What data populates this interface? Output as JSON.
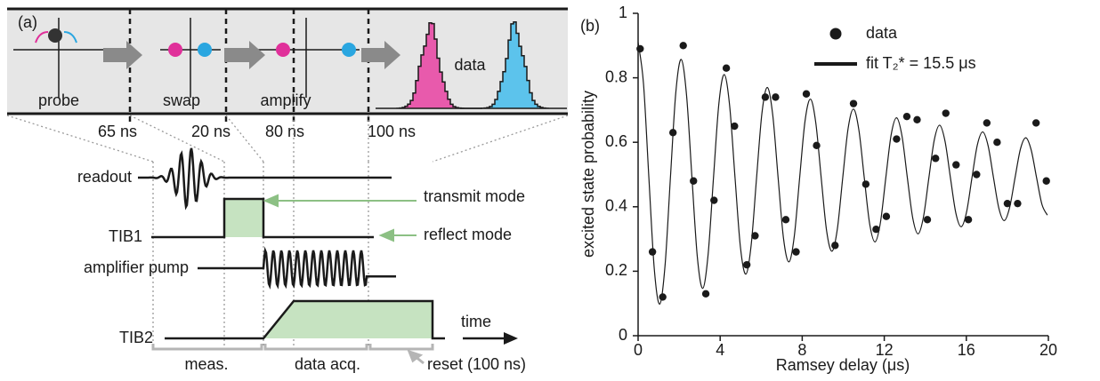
{
  "diagram": {
    "label": "(a)",
    "stages": [
      "probe",
      "swap",
      "amplify",
      "data"
    ],
    "durations": [
      "65 ns",
      "20 ns",
      "80 ns",
      "100 ns"
    ],
    "signals": [
      "readout",
      "TIB1",
      "amplifier pump",
      "TIB2"
    ],
    "modes": [
      "transmit mode",
      "reflect mode"
    ],
    "time": "time",
    "phases": [
      "meas.",
      "data acq.",
      "reset (100 ns)"
    ]
  },
  "chart_data": {
    "type": "scatter",
    "label": "(b)",
    "x_label": "Ramsey delay (μs)",
    "y_label": "excited state probability",
    "xlim": [
      0,
      20
    ],
    "xticks": [
      0,
      4,
      8,
      12,
      16,
      20
    ],
    "ylim": [
      0,
      1
    ],
    "yticks": [
      0,
      0.2,
      0.4,
      0.6,
      0.8,
      1
    ],
    "legend": "upper right",
    "series": [
      {
        "name": "data",
        "mode": "markers",
        "color": "#1a1a1a",
        "x": [
          0.1,
          0.7,
          1.2,
          1.7,
          2.2,
          2.7,
          3.3,
          3.7,
          4.3,
          4.7,
          5.3,
          5.7,
          6.2,
          6.7,
          7.2,
          7.7,
          8.2,
          8.7,
          9.6,
          10.5,
          11.1,
          11.6,
          12.1,
          12.6,
          13.1,
          13.6,
          14.1,
          14.5,
          15.0,
          15.5,
          16.1,
          16.5,
          17.0,
          17.5,
          18.0,
          18.5,
          19.4,
          19.9
        ],
        "values": [
          0.89,
          0.26,
          0.12,
          0.63,
          0.9,
          0.48,
          0.13,
          0.42,
          0.83,
          0.65,
          0.22,
          0.31,
          0.74,
          0.74,
          0.36,
          0.26,
          0.75,
          0.59,
          0.28,
          0.72,
          0.47,
          0.33,
          0.37,
          0.61,
          0.68,
          0.67,
          0.36,
          0.55,
          0.69,
          0.53,
          0.36,
          0.5,
          0.66,
          0.6,
          0.41,
          0.41,
          0.66,
          0.48
        ]
      },
      {
        "name": "fit T₂* = 15.5 μs",
        "mode": "line",
        "color": "#1a1a1a",
        "x": [
          0,
          0.2625,
          0.525,
          0.7875,
          1.05,
          1.3125,
          1.575,
          1.8375,
          2.1,
          2.3625,
          2.625,
          2.8875,
          3.15,
          3.4125,
          3.675,
          3.9375,
          4.2,
          4.4625,
          4.725,
          4.9875,
          5.25,
          5.5125,
          5.775,
          6.0375,
          6.3,
          6.5625,
          6.825,
          7.0875,
          7.35,
          7.6125,
          7.875,
          8.1375,
          8.4,
          8.6625,
          8.925,
          9.1875,
          9.45,
          9.7125,
          9.975,
          10.2375,
          10.5,
          10.7625,
          11.025,
          11.2875,
          11.55,
          11.8125,
          12.075,
          12.3375,
          12.6,
          12.8625,
          13.125,
          13.3875,
          13.65,
          13.9125,
          14.175,
          14.4375,
          14.7,
          14.9625,
          15.225,
          15.4875,
          15.75,
          16.0125,
          16.275,
          16.5375,
          16.8,
          17.0625,
          17.325,
          17.5875,
          17.85,
          18.1125,
          18.375,
          18.6375,
          18.9,
          19.1625,
          19.425,
          19.6875,
          19.95
        ],
        "values": [
          0.91,
          0.782,
          0.49,
          0.208,
          0.098,
          0.217,
          0.49,
          0.754,
          0.857,
          0.745,
          0.49,
          0.244,
          0.147,
          0.252,
          0.49,
          0.72,
          0.81,
          0.713,
          0.49,
          0.275,
          0.191,
          0.282,
          0.49,
          0.691,
          0.77,
          0.685,
          0.49,
          0.302,
          0.229,
          0.308,
          0.49,
          0.666,
          0.734,
          0.66,
          0.49,
          0.326,
          0.262,
          0.331,
          0.49,
          0.643,
          0.703,
          0.638,
          0.49,
          0.347,
          0.291,
          0.351,
          0.49,
          0.624,
          0.676,
          0.62,
          0.49,
          0.365,
          0.316,
          0.369,
          0.49,
          0.607,
          0.653,
          0.603,
          0.49,
          0.381,
          0.338,
          0.384,
          0.49,
          0.592,
          0.632,
          0.589,
          0.49,
          0.395,
          0.357,
          0.398,
          0.49,
          0.579,
          0.614,
          0.576,
          0.49,
          0.407,
          0.374
        ]
      }
    ]
  }
}
